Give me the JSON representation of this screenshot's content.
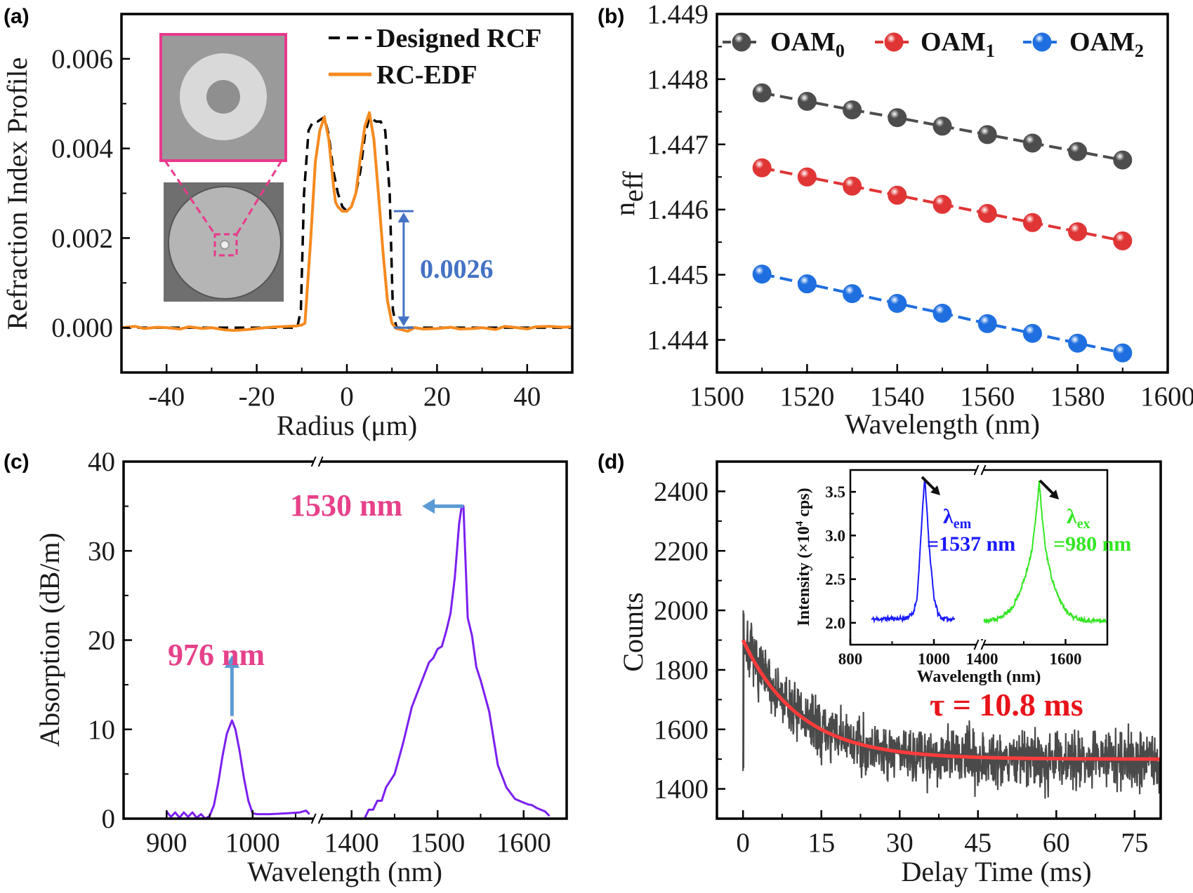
{
  "panel_labels": [
    "(a)",
    "(b)",
    "(c)",
    "(d)"
  ],
  "colors": {
    "designed": "#000000",
    "rc_edf": "#f58a1f",
    "annotation_blue": "#4472c4",
    "inset_pink": "#e8398c",
    "oam0": "#4d4d4d",
    "oam1": "#e03535",
    "oam2": "#1f6fe0",
    "absorption": "#7b1ff0",
    "peak_label": "#e6418a",
    "peak_arrow": "#5b9bd5",
    "decay_data": "#4a4a4a",
    "decay_fit": "#ff3b3b",
    "tau_text": "#e8141a",
    "em_blue": "#1a1aff",
    "ex_green": "#33e622"
  },
  "chart_data": [
    {
      "panel": "(a)",
      "type": "line",
      "xlabel": "Radius (μm)",
      "ylabel": "Refraction Index Profile",
      "xlim": [
        -50,
        50
      ],
      "ylim": [
        -0.001,
        0.007
      ],
      "x_ticks": [
        -40,
        -20,
        0,
        20,
        40
      ],
      "x_tick_labels": [
        "-40",
        "-20",
        "0",
        "20",
        "40"
      ],
      "y_ticks": [
        0,
        0.002,
        0.004,
        0.006
      ],
      "y_tick_labels": [
        "0.000",
        "0.002",
        "0.004",
        "0.006"
      ],
      "legend": "top-right",
      "series": [
        {
          "name": "Designed RCF",
          "style": "dashed",
          "x": [
            -50,
            -11,
            -10.2,
            -9.5,
            -8.5,
            -7.5,
            -6.5,
            -5,
            -4,
            -3,
            -2,
            -1,
            0,
            1,
            2,
            3,
            4,
            5,
            6.5,
            7.5,
            8.5,
            9.5,
            10.2,
            11,
            50
          ],
          "y": [
            0,
            0,
            0.0004,
            0.003,
            0.0044,
            0.0046,
            0.0046,
            0.0047,
            0.0043,
            0.0035,
            0.003,
            0.0027,
            0.0026,
            0.0027,
            0.003,
            0.0035,
            0.0043,
            0.0047,
            0.0046,
            0.0046,
            0.0044,
            0.003,
            0.0004,
            0,
            0
          ]
        },
        {
          "name": "RC-EDF",
          "style": "solid",
          "x": [
            -50,
            -47,
            -45,
            -42,
            -40,
            -37,
            -35,
            -32,
            -30,
            -27,
            -25,
            -22,
            -20,
            -17,
            -15,
            -13,
            -11,
            -10,
            -9.3,
            -8,
            -7,
            -6,
            -5,
            -4,
            -3,
            -2.5,
            -2,
            -1,
            0,
            1,
            2,
            3,
            4,
            5,
            6,
            7,
            8,
            9,
            10,
            11,
            12,
            13.5,
            15,
            17,
            20,
            23,
            25,
            28,
            30,
            33,
            35,
            37,
            40,
            42,
            45,
            48,
            50
          ],
          "y": [
            0,
            3e-05,
            -2e-05,
            1e-05,
            0,
            -3e-05,
            2e-05,
            -2e-05,
            0,
            -5e-05,
            -6e-05,
            -4e-05,
            -2e-05,
            1e-05,
            2e-05,
            3e-05,
            4e-05,
            6e-05,
            0.0001,
            0.002,
            0.0037,
            0.0044,
            0.0047,
            0.0042,
            0.0032,
            0.0028,
            0.0027,
            0.0026,
            0.0026,
            0.0027,
            0.003,
            0.0038,
            0.0045,
            0.0048,
            0.0042,
            0.003,
            0.0017,
            0.0006,
            0.0001,
            -2e-05,
            -4e-05,
            -8e-05,
            0,
            -3e-05,
            -2e-05,
            1e-05,
            -3e-05,
            -2e-05,
            0,
            -4e-05,
            3e-05,
            1e-05,
            -3e-05,
            2e-05,
            3e-05,
            1e-05,
            2e-05
          ]
        }
      ],
      "annotations": [
        {
          "text": "0.0026",
          "type": "double-arrow",
          "x": 12.6,
          "y_from": 0,
          "y_to": 0.0026
        }
      ]
    },
    {
      "panel": "(b)",
      "type": "line",
      "xlabel": "Wavelength (nm)",
      "ylabel_main": "n",
      "ylabel_sub": "eff",
      "xlim": [
        1500,
        1600
      ],
      "ylim": [
        1.4435,
        1.449
      ],
      "x_ticks": [
        1500,
        1520,
        1540,
        1560,
        1580,
        1600
      ],
      "x_tick_labels": [
        "1500",
        "1520",
        "1540",
        "1560",
        "1580",
        "1600"
      ],
      "y_ticks": [
        1.444,
        1.445,
        1.446,
        1.447,
        1.448,
        1.449
      ],
      "y_tick_labels": [
        "1.444",
        "1.445",
        "1.446",
        "1.447",
        "1.448",
        "1.449"
      ],
      "legend": "top",
      "x": [
        1510,
        1520,
        1530,
        1540,
        1550,
        1560,
        1570,
        1580,
        1590
      ],
      "series": [
        {
          "name": "OAM",
          "sub": "0",
          "values": [
            1.44779,
            1.44766,
            1.44753,
            1.44741,
            1.44728,
            1.44715,
            1.44702,
            1.44689,
            1.44676
          ]
        },
        {
          "name": "OAM",
          "sub": "1",
          "values": [
            1.44664,
            1.4465,
            1.44636,
            1.44622,
            1.44608,
            1.44594,
            1.4458,
            1.44566,
            1.44552
          ]
        },
        {
          "name": "OAM",
          "sub": "2",
          "values": [
            1.44501,
            1.44486,
            1.44471,
            1.44456,
            1.44441,
            1.44425,
            1.4441,
            1.44395,
            1.4438
          ]
        }
      ]
    },
    {
      "panel": "(c)",
      "type": "line",
      "xlabel": "Wavelength (nm)",
      "ylabel": "Absorption (dB/m)",
      "x_segments": [
        [
          850,
          1075
        ],
        [
          1360,
          1650
        ]
      ],
      "ylim": [
        0,
        40
      ],
      "x_ticks": [
        900,
        1000,
        1400,
        1500,
        1600
      ],
      "x_tick_labels": [
        "900",
        "1000",
        "1400",
        "1500",
        "1600"
      ],
      "y_ticks": [
        0,
        10,
        20,
        30,
        40
      ],
      "y_tick_labels": [
        "0",
        "10",
        "20",
        "30",
        "40"
      ],
      "series": [
        {
          "x": [
            900,
            905,
            910,
            915,
            920,
            925,
            930,
            935,
            940,
            945,
            950,
            955,
            960,
            965,
            970,
            976,
            980,
            985,
            990,
            995,
            1000,
            1005,
            1020,
            1040,
            1055,
            1062,
            1066
          ],
          "y": [
            0.8,
            0.2,
            0.7,
            0.1,
            0.7,
            0.2,
            0.7,
            0.1,
            0.5,
            0,
            0.3,
            1.5,
            4,
            7,
            9.5,
            11,
            10,
            7.5,
            4.5,
            2,
            0.6,
            0.5,
            0.5,
            0.6,
            0.7,
            0.9,
            0.5
          ]
        },
        {
          "x": [
            1415,
            1420,
            1425,
            1430,
            1435,
            1440,
            1450,
            1460,
            1470,
            1480,
            1490,
            1495,
            1500,
            1505,
            1510,
            1515,
            1520,
            1525,
            1528,
            1530,
            1532,
            1535,
            1540,
            1545,
            1550,
            1560,
            1570,
            1580,
            1590,
            1600,
            1605,
            1610,
            1615,
            1620,
            1625,
            1630
          ],
          "y": [
            0,
            1,
            1,
            2,
            2,
            3.5,
            5,
            8.5,
            12.5,
            15,
            17.5,
            18,
            19,
            19.3,
            21,
            23,
            27,
            33,
            35,
            35,
            30,
            22.5,
            20.5,
            17,
            15.5,
            12,
            6,
            3.5,
            2.2,
            1.8,
            1.6,
            1.5,
            1.2,
            1,
            0.8,
            0.3
          ]
        }
      ],
      "annotations": [
        {
          "text": "976 nm",
          "arrow": "up",
          "x": 976,
          "y_from": 11.5,
          "y_to": 18.3
        },
        {
          "text": "1530 nm",
          "arrow": "left",
          "y": 35,
          "x_from": 1530,
          "x_to": 1482
        }
      ]
    },
    {
      "panel": "(d)",
      "type": "line",
      "xlabel": "Delay Time (ms)",
      "ylabel": "Counts",
      "xlim": [
        -5,
        80
      ],
      "ylim": [
        1300,
        2500
      ],
      "x_ticks": [
        0,
        15,
        30,
        45,
        60,
        75
      ],
      "x_tick_labels": [
        "0",
        "15",
        "30",
        "45",
        "60",
        "75"
      ],
      "y_ticks": [
        1400,
        1600,
        1800,
        2000,
        2200,
        2400
      ],
      "y_tick_labels": [
        "1400",
        "1600",
        "1800",
        "2000",
        "2200",
        "2400"
      ],
      "data_range_ms": [
        0,
        80
      ],
      "fit": {
        "tau_ms": 10.8,
        "baseline": 1500,
        "amplitude": 400
      },
      "fit_label": "τ = 10.8 ms",
      "inset": {
        "type": "line",
        "xlabel": "Wavelength (nm)",
        "ylabel_pre": "Intensity (×10",
        "ylabel_sup": "4",
        "ylabel_post": " cps)",
        "x_segments": [
          [
            800,
            1110
          ],
          [
            1395,
            1700
          ]
        ],
        "ylim": [
          1.75,
          3.75
        ],
        "x_ticks": [
          800,
          1000,
          1400,
          1600
        ],
        "x_tick_labels": [
          "800",
          "1000",
          "1400",
          "1600"
        ],
        "y_ticks": [
          2.0,
          2.5,
          3.0,
          3.5
        ],
        "y_tick_labels": [
          "2.0",
          "2.5",
          "3.0",
          "3.5"
        ],
        "series": [
          {
            "color_key": "em_blue",
            "x": [
              850,
              900,
              930,
              950,
              960,
              968,
              974,
              978,
              982,
              988,
              994,
              1000,
              1010,
              1020,
              1035,
              1050
            ],
            "y": [
              2.04,
              2.05,
              2.05,
              2.1,
              2.3,
              2.9,
              3.4,
              3.65,
              3.4,
              2.9,
              2.6,
              2.3,
              2.1,
              2.05,
              2.04,
              2.05
            ]
          },
          {
            "color_key": "ex_green",
            "x": [
              1405,
              1440,
              1470,
              1490,
              1505,
              1520,
              1530,
              1537,
              1544,
              1552,
              1565,
              1580,
              1600,
              1620,
              1650,
              1700
            ],
            "y": [
              2.02,
              2.05,
              2.15,
              2.35,
              2.55,
              2.85,
              3.25,
              3.62,
              3.2,
              2.85,
              2.55,
              2.32,
              2.15,
              2.06,
              2.03,
              2.02
            ]
          }
        ],
        "labels": [
          {
            "lambda": "λ",
            "sub": "em",
            "value": "=1537 nm",
            "color_key": "em_blue"
          },
          {
            "lambda": "λ",
            "sub": "ex",
            "value": "=980 nm",
            "color_key": "ex_green"
          }
        ]
      }
    }
  ]
}
